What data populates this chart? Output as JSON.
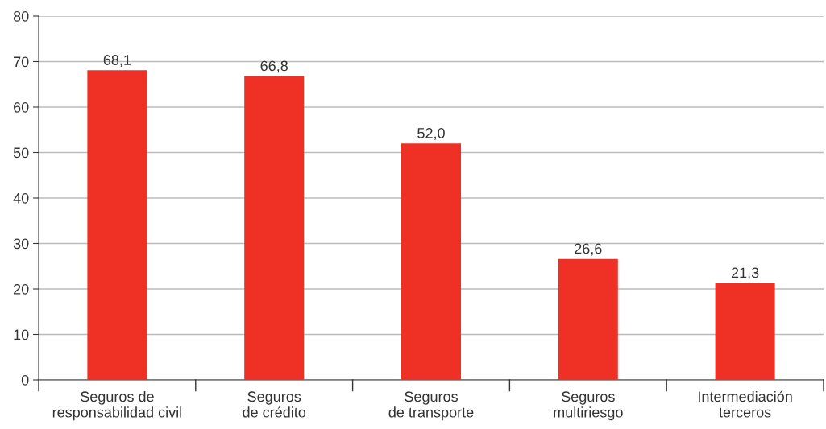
{
  "chart_data": {
    "type": "bar",
    "categories": [
      "Seguros de\nresponsabilidad civil",
      "Seguros\nde crédito",
      "Seguros\nde transporte",
      "Seguros\nmultiriesgo",
      "Intermediación\nterceros"
    ],
    "values": [
      68.1,
      66.8,
      52.0,
      26.6,
      21.3
    ],
    "value_labels": [
      "68,1",
      "66,8",
      "52,0",
      "26,6",
      "21,3"
    ],
    "color": "#ee3124",
    "ylim": [
      0,
      80
    ],
    "yticks": [
      0,
      10,
      20,
      30,
      40,
      50,
      60,
      70,
      80
    ],
    "grid": "y",
    "legend": false
  }
}
